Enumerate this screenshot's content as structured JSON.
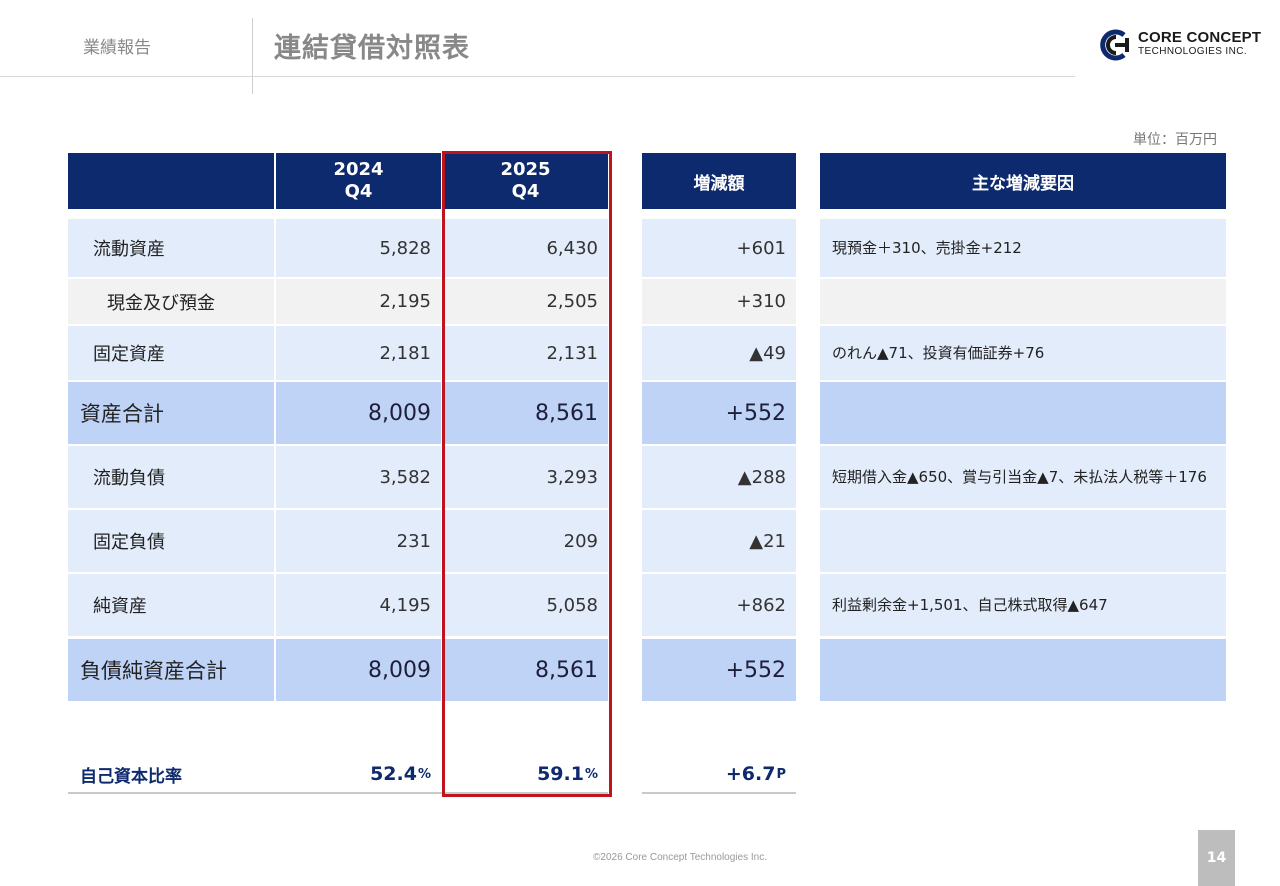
{
  "header": {
    "section": "業績報告",
    "title": "連結貸借対照表"
  },
  "logo": {
    "line1": "CORE CONCEPT",
    "line2": "TECHNOLOGIES INC."
  },
  "unit": "単位：百万円",
  "table": {
    "col1": [
      "2024",
      "Q4"
    ],
    "col2": [
      "2025",
      "Q4"
    ],
    "col_change": "増減額",
    "col_reason": "主な増減要因",
    "rows": [
      {
        "label": "流動資産",
        "v2024": "5,828",
        "v2025": "6,430",
        "change": "+601",
        "reason": "現預金＋310、売掛金+212"
      },
      {
        "label": "現金及び預金",
        "v2024": "2,195",
        "v2025": "2,505",
        "change": "+310",
        "reason": ""
      },
      {
        "label": "固定資産",
        "v2024": "2,181",
        "v2025": "2,131",
        "change": "▲49",
        "reason": "のれん▲71、投資有価証券+76"
      },
      {
        "label": "資産合計",
        "v2024": "8,009",
        "v2025": "8,561",
        "change": "+552",
        "reason": ""
      },
      {
        "label": "流動負債",
        "v2024": "3,582",
        "v2025": "3,293",
        "change": "▲288",
        "reason": "短期借入金▲650、賞与引当金▲7、未払法人税等＋176"
      },
      {
        "label": "固定負債",
        "v2024": "231",
        "v2025": "209",
        "change": "▲21",
        "reason": ""
      },
      {
        "label": "純資産",
        "v2024": "4,195",
        "v2025": "5,058",
        "change": "+862",
        "reason": "利益剰余金+1,501、自己株式取得▲647"
      },
      {
        "label": "負債純資産合計",
        "v2024": "8,009",
        "v2025": "8,561",
        "change": "+552",
        "reason": ""
      }
    ],
    "ratio": {
      "label": "自己資本比率",
      "v2024": "52.4",
      "v2025": "59.1",
      "unit": "%",
      "change": "+6.7",
      "change_unit": "P"
    }
  },
  "footer": {
    "copyright": "©2026 Core Concept Technologies Inc.",
    "page": "14"
  },
  "colors": {
    "header_navy": "#0e2a6e",
    "row_light": "#e3ecfb",
    "row_total": "#bfd3f7",
    "highlight_red": "#c0141c"
  }
}
